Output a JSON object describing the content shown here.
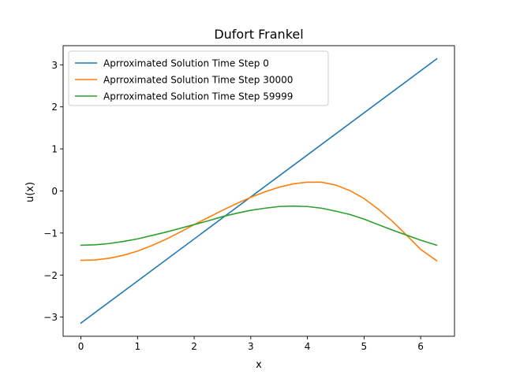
{
  "chart_data": {
    "type": "line",
    "title": "Dufort Frankel",
    "xlabel": "x",
    "ylabel": "u(x)",
    "xlim": [
      -0.3142,
      6.5974
    ],
    "ylim": [
      -3.4558,
      3.4558
    ],
    "xticks": [
      0,
      1,
      2,
      3,
      4,
      5,
      6
    ],
    "xtick_labels": [
      "0",
      "1",
      "2",
      "3",
      "4",
      "5",
      "6"
    ],
    "yticks": [
      -3,
      -2,
      -1,
      0,
      1,
      2,
      3
    ],
    "ytick_labels": [
      "−3",
      "−2",
      "−1",
      "0",
      "1",
      "2",
      "3"
    ],
    "grid": false,
    "legend_position": "top-left",
    "series": [
      {
        "name": "Aprroximated Solution Time Step 0",
        "color": "#1f77b4",
        "x": [
          0.0,
          6.2832
        ],
        "y": [
          -3.1416,
          3.1416
        ]
      },
      {
        "name": "Aprroximated Solution Time Step 30000",
        "color": "#ff7f0e",
        "x": [
          0.0,
          0.25,
          0.5,
          0.75,
          1.0,
          1.25,
          1.5,
          1.75,
          2.0,
          2.25,
          2.5,
          2.75,
          3.0,
          3.25,
          3.5,
          3.75,
          4.0,
          4.25,
          4.5,
          4.75,
          5.0,
          5.25,
          5.5,
          5.75,
          6.0,
          6.2832
        ],
        "y": [
          -1.65,
          -1.64,
          -1.6,
          -1.53,
          -1.43,
          -1.3,
          -1.15,
          -0.98,
          -0.8,
          -0.63,
          -0.46,
          -0.3,
          -0.15,
          -0.02,
          0.09,
          0.17,
          0.21,
          0.21,
          0.14,
          0.01,
          -0.18,
          -0.43,
          -0.72,
          -1.05,
          -1.39,
          -1.66
        ]
      },
      {
        "name": "Aprroximated Solution Time Step 59999",
        "color": "#2ca02c",
        "x": [
          0.0,
          0.25,
          0.5,
          0.75,
          1.0,
          1.25,
          1.5,
          1.75,
          2.0,
          2.25,
          2.5,
          2.75,
          3.0,
          3.25,
          3.5,
          3.75,
          4.0,
          4.25,
          4.5,
          4.75,
          5.0,
          5.25,
          5.5,
          5.75,
          6.0,
          6.2832
        ],
        "y": [
          -1.29,
          -1.28,
          -1.25,
          -1.2,
          -1.14,
          -1.06,
          -0.98,
          -0.89,
          -0.8,
          -0.71,
          -0.61,
          -0.53,
          -0.46,
          -0.41,
          -0.37,
          -0.36,
          -0.37,
          -0.41,
          -0.48,
          -0.56,
          -0.67,
          -0.8,
          -0.93,
          -1.05,
          -1.17,
          -1.29
        ]
      }
    ]
  }
}
